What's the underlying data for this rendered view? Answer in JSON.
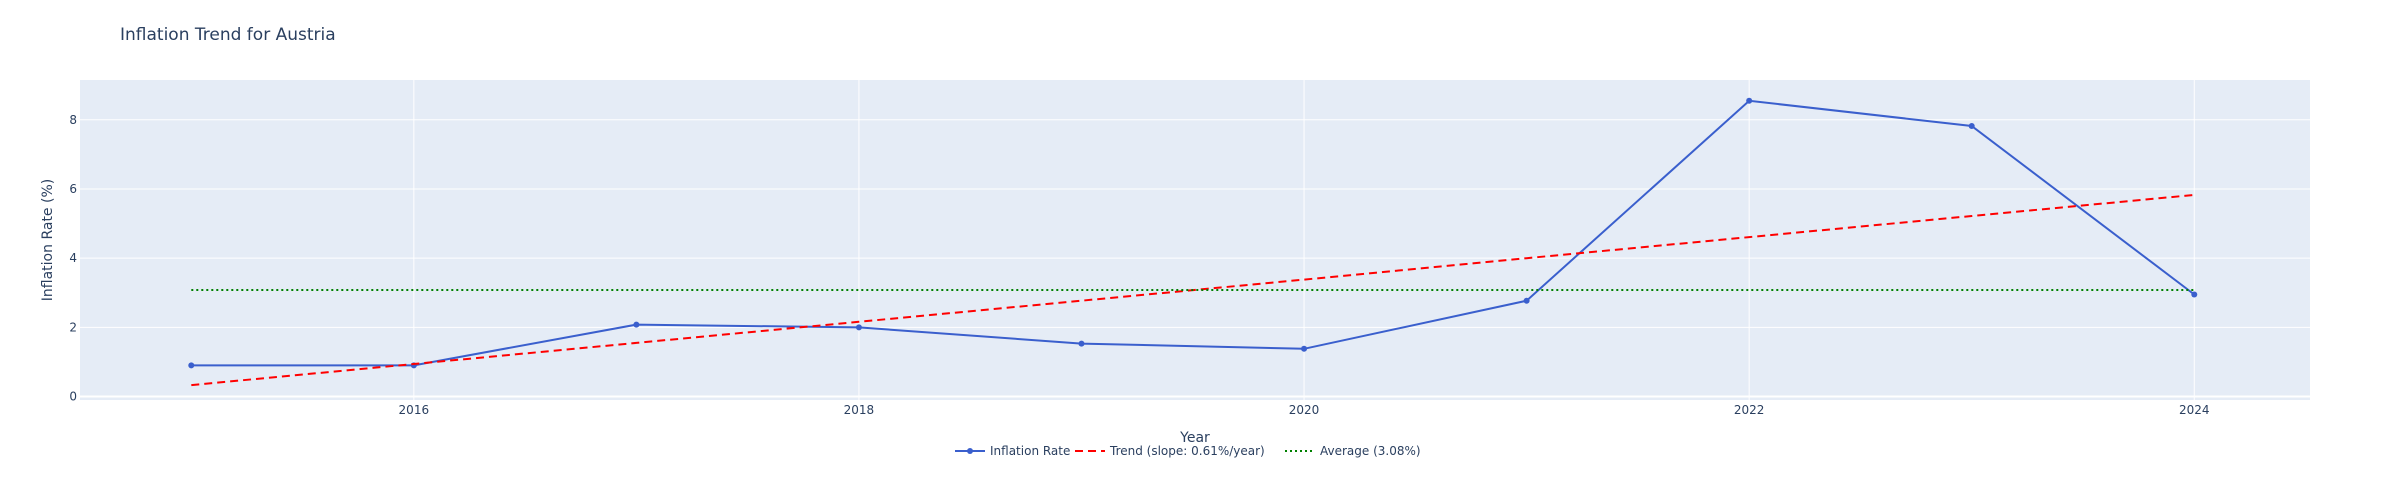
{
  "chart_data": {
    "type": "line",
    "title": "Inflation Trend for Austria",
    "xlabel": "Year",
    "ylabel": "Inflation Rate (%)",
    "x": [
      2015,
      2016,
      2017,
      2018,
      2019,
      2020,
      2021,
      2022,
      2023,
      2024
    ],
    "xlim": [
      2014.5,
      2024.52
    ],
    "ylim": [
      -0.1,
      9.15
    ],
    "x_ticks": [
      2016,
      2018,
      2020,
      2022,
      2024
    ],
    "y_ticks": [
      0,
      2,
      4,
      6,
      8
    ],
    "grid": true,
    "legend_position": "bottom-center",
    "series": [
      {
        "name": "Inflation Rate",
        "style": "line+markers",
        "color": "#3a5fcd",
        "values": [
          0.9,
          0.9,
          2.08,
          2.0,
          1.53,
          1.38,
          2.77,
          8.55,
          7.82,
          2.95
        ]
      },
      {
        "name": "Trend (slope: 0.61%/year)",
        "style": "dashed",
        "color": "#ff0000",
        "values": [
          0.33,
          0.94,
          1.55,
          2.16,
          2.77,
          3.38,
          4.0,
          4.61,
          5.22,
          5.83
        ]
      },
      {
        "name": "Average (3.08%)",
        "style": "dotted",
        "color": "#008000",
        "values": [
          3.08,
          3.08,
          3.08,
          3.08,
          3.08,
          3.08,
          3.08,
          3.08,
          3.08,
          3.08
        ]
      }
    ],
    "colors": {
      "plot_background": "#e5ecf6",
      "grid": "#ffffff",
      "text": "#2a3f5f"
    }
  }
}
